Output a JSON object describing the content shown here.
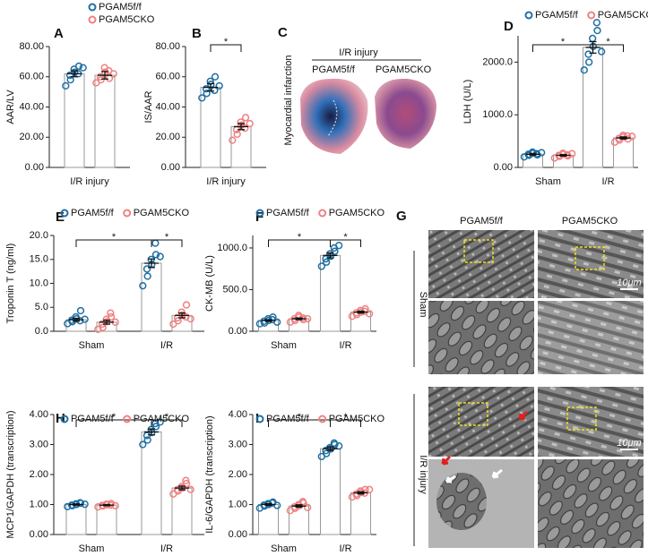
{
  "chart_data": [
    {
      "type": "bar",
      "panel": "A",
      "y_label": "AAR/LV",
      "categories": [
        "I/R injury"
      ],
      "ylim": [
        0,
        80
      ],
      "yticks": [
        {
          "value": 0,
          "label": "0.00"
        },
        {
          "value": 20,
          "label": "20.00"
        },
        {
          "value": 40,
          "label": "40.00"
        },
        {
          "value": 60,
          "label": "60.00"
        },
        {
          "value": 80,
          "label": "80.00"
        }
      ],
      "legend": "top-stacked",
      "series": [
        {
          "name": "PGAM5f/f",
          "color": "#1f6fa3",
          "values": [
            62
          ],
          "errors": [
            2
          ],
          "points": [
            [
              54,
              58,
              61,
              63,
              65,
              67,
              62,
              66
            ]
          ]
        },
        {
          "name": "PGAM5CKO",
          "color": "#f08080",
          "values": [
            61
          ],
          "errors": [
            2.5
          ],
          "points": [
            [
              56,
              58,
              60,
              63,
              66,
              59,
              64,
              62
            ]
          ]
        }
      ],
      "significance": []
    },
    {
      "type": "bar",
      "panel": "B",
      "y_label": "IS/AAR",
      "categories": [
        "I/R injury"
      ],
      "ylim": [
        0,
        80
      ],
      "yticks": [
        {
          "value": 0,
          "label": "0.00"
        },
        {
          "value": 20,
          "label": "20.00"
        },
        {
          "value": 40,
          "label": "40.00"
        },
        {
          "value": 60,
          "label": "60.00"
        },
        {
          "value": 80,
          "label": "80.00"
        }
      ],
      "series": [
        {
          "color": "#1f6fa3",
          "values": [
            53
          ],
          "errors": [
            2.5
          ],
          "points": [
            [
              46,
              49,
              52,
              55,
              57,
              60,
              51,
              54
            ]
          ]
        },
        {
          "color": "#f08080",
          "values": [
            27
          ],
          "errors": [
            2
          ],
          "points": [
            [
              18,
              22,
              25,
              28,
              30,
              33,
              26,
              29
            ]
          ]
        }
      ],
      "significance": [
        {
          "label": "*",
          "from": [
            0,
            0
          ],
          "to": [
            1,
            0
          ]
        }
      ]
    },
    {
      "type": "bar",
      "panel": "D",
      "y_label": "LDH (U/L)",
      "categories": [
        "Sham",
        "I/R"
      ],
      "ylim": [
        0,
        2500
      ],
      "yticks": [
        {
          "value": 0,
          "label": "0.00"
        },
        {
          "value": 1000,
          "label": "1000.0"
        },
        {
          "value": 2000,
          "label": "2000.0"
        }
      ],
      "legend": "top",
      "series": [
        {
          "name": "PGAM5f/f",
          "color": "#1f6fa3",
          "values": [
            250,
            2280
          ],
          "errors": [
            15,
            110
          ],
          "points": [
            [
              200,
              230,
              250,
              270,
              290,
              240,
              260,
              280
            ],
            [
              1850,
              2000,
              2150,
              2300,
              2450,
              2600,
              2750,
              2200
            ]
          ]
        },
        {
          "name": "PGAM5CKO",
          "color": "#f08080",
          "values": [
            230,
            560
          ],
          "errors": [
            15,
            20
          ],
          "points": [
            [
              180,
              210,
              230,
              250,
              270,
              220,
              240,
              260
            ],
            [
              480,
              520,
              550,
              580,
              610,
              540,
              600,
              590
            ]
          ]
        }
      ],
      "significance": [
        {
          "label": "*",
          "from": [
            0,
            0
          ],
          "to": [
            0,
            1
          ]
        },
        {
          "label": "*",
          "from": [
            0,
            1
          ],
          "to": [
            1,
            1
          ]
        }
      ]
    },
    {
      "type": "bar",
      "panel": "E",
      "y_label": "Troponin T (ng/ml)",
      "categories": [
        "Sham",
        "I/R"
      ],
      "ylim": [
        0,
        20
      ],
      "yticks": [
        {
          "value": 0,
          "label": "0.0"
        },
        {
          "value": 5,
          "label": "5.0"
        },
        {
          "value": 10,
          "label": "10.0"
        },
        {
          "value": 15,
          "label": "15.0"
        },
        {
          "value": 20,
          "label": "20.0"
        }
      ],
      "legend": "top",
      "series": [
        {
          "name": "PGAM5f/f",
          "color": "#1f6fa3",
          "values": [
            2.4,
            14.2
          ],
          "errors": [
            0.3,
            0.9
          ],
          "points": [
            [
              1.6,
              2.0,
              2.3,
              2.6,
              3.0,
              4.3,
              2.2,
              2.5
            ],
            [
              9.5,
              11.5,
              13.0,
              14.0,
              15.0,
              16.0,
              18.4,
              15.6
            ]
          ]
        },
        {
          "name": "PGAM5CKO",
          "color": "#f08080",
          "values": [
            1.9,
            3.3
          ],
          "errors": [
            0.4,
            0.5
          ],
          "points": [
            [
              0.4,
              0.8,
              1.5,
              2.0,
              2.5,
              3.0,
              3.8,
              1.9
            ],
            [
              1.5,
              2.2,
              2.8,
              3.4,
              4.0,
              5.5,
              3.0,
              2.6
            ]
          ]
        }
      ],
      "significance": [
        {
          "label": "*",
          "from": [
            0,
            0
          ],
          "to": [
            0,
            1
          ]
        },
        {
          "label": "*",
          "from": [
            0,
            1
          ],
          "to": [
            1,
            1
          ]
        }
      ]
    },
    {
      "type": "bar",
      "panel": "F",
      "y_label": "CK-MB (U/L)",
      "categories": [
        "Sham",
        "I/R"
      ],
      "ylim": [
        0,
        1150
      ],
      "yticks": [
        {
          "value": 0,
          "label": "0.00"
        },
        {
          "value": 500,
          "label": "500.0"
        },
        {
          "value": 1000,
          "label": "1000.0"
        }
      ],
      "legend": "top",
      "series": [
        {
          "name": "PGAM5f/f",
          "color": "#1f6fa3",
          "values": [
            130,
            910
          ],
          "errors": [
            10,
            30
          ],
          "points": [
            [
              90,
              100,
              120,
              130,
              150,
              170,
              140,
              110
            ],
            [
              780,
              830,
              870,
              900,
              930,
              960,
              1000,
              1030
            ]
          ]
        },
        {
          "name": "PGAM5CKO",
          "color": "#f08080",
          "values": [
            150,
            230
          ],
          "errors": [
            10,
            12
          ],
          "points": [
            [
              110,
              130,
              150,
              170,
              190,
              140,
              160,
              150
            ],
            [
              180,
              200,
              220,
              230,
              250,
              270,
              240,
              210
            ]
          ]
        }
      ],
      "significance": [
        {
          "label": "*",
          "from": [
            0,
            0
          ],
          "to": [
            0,
            1
          ]
        },
        {
          "label": "*",
          "from": [
            0,
            1
          ],
          "to": [
            1,
            1
          ]
        }
      ]
    },
    {
      "type": "bar",
      "panel": "H",
      "y_label": "MCP1/GAPDH (transcription)",
      "categories": [
        "Sham",
        "I/R"
      ],
      "ylim": [
        0,
        4
      ],
      "yticks": [
        {
          "value": 0,
          "label": "0.00"
        },
        {
          "value": 1,
          "label": "1.00"
        },
        {
          "value": 2,
          "label": "2.00"
        },
        {
          "value": 3,
          "label": "3.00"
        },
        {
          "value": 4,
          "label": "4.00"
        }
      ],
      "legend": "top",
      "series": [
        {
          "name": "PGAM5f/f",
          "color": "#1f6fa3",
          "values": [
            1.0,
            3.42
          ],
          "errors": [
            0.02,
            0.1
          ],
          "points": [
            [
              0.93,
              0.96,
              0.98,
              1.0,
              1.02,
              1.04,
              1.06,
              1.01
            ],
            [
              3.0,
              3.15,
              3.3,
              3.4,
              3.5,
              3.6,
              3.7,
              3.75
            ]
          ]
        },
        {
          "name": "PGAM5CKO",
          "color": "#f08080",
          "values": [
            0.98,
            1.55
          ],
          "errors": [
            0.02,
            0.06
          ],
          "points": [
            [
              0.92,
              0.95,
              0.97,
              0.99,
              1.01,
              1.03,
              0.98,
              0.96
            ],
            [
              1.35,
              1.45,
              1.5,
              1.55,
              1.6,
              1.7,
              1.8,
              1.5
            ]
          ]
        }
      ],
      "significance": [
        {
          "label": "*",
          "from": [
            0,
            0
          ],
          "to": [
            0,
            1
          ]
        },
        {
          "label": "*",
          "from": [
            0,
            1
          ],
          "to": [
            1,
            1
          ]
        }
      ]
    },
    {
      "type": "bar",
      "panel": "I",
      "y_label": "IL-6/GAPDH (transcription)",
      "categories": [
        "Sham",
        "I/R"
      ],
      "ylim": [
        0,
        4
      ],
      "yticks": [
        {
          "value": 0,
          "label": "0.00"
        },
        {
          "value": 1,
          "label": "1.00"
        },
        {
          "value": 2,
          "label": "2.00"
        },
        {
          "value": 3,
          "label": "3.00"
        },
        {
          "value": 4,
          "label": "4.00"
        }
      ],
      "legend": "top",
      "series": [
        {
          "name": "PGAM5f/f",
          "color": "#1f6fa3",
          "values": [
            1.0,
            2.86
          ],
          "errors": [
            0.03,
            0.06
          ],
          "points": [
            [
              0.88,
              0.95,
              0.98,
              1.0,
              1.03,
              1.08,
              1.05,
              0.97
            ],
            [
              2.6,
              2.7,
              2.8,
              2.85,
              2.9,
              3.0,
              3.05,
              2.95
            ]
          ]
        },
        {
          "name": "PGAM5CKO",
          "color": "#f08080",
          "values": [
            0.95,
            1.39
          ],
          "errors": [
            0.04,
            0.04
          ],
          "points": [
            [
              0.8,
              0.87,
              0.92,
              0.96,
              1.0,
              1.05,
              1.1,
              0.9
            ],
            [
              1.25,
              1.3,
              1.35,
              1.4,
              1.45,
              1.5,
              1.38,
              1.5
            ]
          ]
        }
      ],
      "significance": [
        {
          "label": "*",
          "from": [
            0,
            0
          ],
          "to": [
            0,
            1
          ]
        },
        {
          "label": "*",
          "from": [
            0,
            1
          ],
          "to": [
            1,
            1
          ]
        }
      ]
    }
  ],
  "panels": {
    "C": {
      "letter": "C",
      "y_label": "Myocardial infarction",
      "group": "I/R injury",
      "columns": [
        "PGAM5f/f",
        "PGAM5CKO"
      ]
    },
    "G": {
      "letter": "G",
      "columns": [
        "PGAM5f/f",
        "PGAM5CKO"
      ],
      "rows": [
        "Sham",
        "I/R injury"
      ],
      "scale_bars": [
        "10μm",
        "10μm"
      ]
    }
  }
}
